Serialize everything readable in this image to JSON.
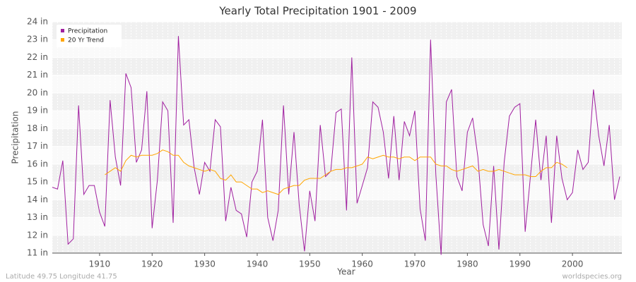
{
  "chart_data": {
    "type": "line",
    "title": "Yearly Total Precipitation 1901 - 2009",
    "x_label": "Year",
    "y_label": "Precipitation",
    "footer_left": "Latitude 49.75 Longitude 41.75",
    "footer_right": "worldspecies.org",
    "legend_position": "upper left",
    "grid": true,
    "x": [
      1901,
      1902,
      1903,
      1904,
      1905,
      1906,
      1907,
      1908,
      1909,
      1910,
      1911,
      1912,
      1913,
      1914,
      1915,
      1916,
      1917,
      1918,
      1919,
      1920,
      1921,
      1922,
      1923,
      1924,
      1925,
      1926,
      1927,
      1928,
      1929,
      1930,
      1931,
      1932,
      1933,
      1934,
      1935,
      1936,
      1937,
      1938,
      1939,
      1940,
      1941,
      1942,
      1943,
      1944,
      1945,
      1946,
      1947,
      1948,
      1949,
      1950,
      1951,
      1952,
      1953,
      1954,
      1955,
      1956,
      1957,
      1958,
      1959,
      1960,
      1961,
      1962,
      1963,
      1964,
      1965,
      1966,
      1967,
      1968,
      1969,
      1970,
      1971,
      1972,
      1973,
      1974,
      1975,
      1976,
      1977,
      1978,
      1979,
      1980,
      1981,
      1982,
      1983,
      1984,
      1985,
      1986,
      1987,
      1988,
      1989,
      1990,
      1991,
      1992,
      1993,
      1994,
      1995,
      1996,
      1997,
      1998,
      1999,
      2000,
      2001,
      2002,
      2003,
      2004,
      2005,
      2006,
      2007,
      2008,
      2009
    ],
    "series": [
      {
        "name": "Precipitation",
        "color": "#a020a0",
        "values": [
          14.7,
          14.6,
          16.2,
          11.5,
          11.8,
          19.3,
          14.3,
          14.8,
          14.8,
          13.3,
          12.5,
          19.6,
          16.4,
          14.8,
          21.1,
          20.3,
          16.1,
          16.8,
          20.1,
          12.4,
          15.1,
          19.5,
          19.0,
          12.7,
          23.2,
          18.2,
          18.5,
          15.8,
          14.3,
          16.1,
          15.6,
          18.5,
          18.1,
          12.8,
          14.7,
          13.4,
          13.2,
          11.9,
          15.0,
          15.6,
          18.5,
          13.0,
          11.7,
          13.4,
          19.3,
          14.3,
          17.8,
          13.7,
          11.1,
          14.5,
          12.8,
          18.2,
          15.3,
          15.6,
          18.9,
          19.1,
          13.4,
          22.0,
          13.8,
          14.8,
          15.8,
          19.5,
          19.2,
          17.8,
          15.2,
          18.7,
          15.1,
          18.4,
          17.6,
          19.0,
          13.5,
          11.7,
          23.0,
          15.4,
          10.9,
          19.5,
          20.2,
          15.3,
          14.5,
          17.8,
          18.6,
          16.4,
          12.6,
          11.4,
          15.9,
          11.2,
          16.1,
          18.7,
          19.2,
          19.4,
          12.2,
          15.3,
          18.5,
          15.1,
          17.6,
          12.7,
          17.6,
          15.2,
          14.0,
          14.4,
          16.8,
          15.7,
          16.1,
          20.2,
          17.6,
          15.9,
          18.2,
          14.0,
          15.3
        ]
      },
      {
        "name": "20 Yr Trend",
        "color": "#ffa500",
        "values": [
          null,
          null,
          null,
          null,
          null,
          null,
          null,
          null,
          null,
          null,
          15.4,
          15.6,
          15.8,
          15.6,
          16.2,
          16.5,
          16.4,
          16.5,
          16.5,
          16.5,
          16.6,
          16.8,
          16.7,
          16.5,
          16.5,
          16.1,
          15.9,
          15.8,
          15.7,
          15.6,
          15.7,
          15.6,
          15.2,
          15.1,
          15.4,
          15.0,
          15.0,
          14.8,
          14.6,
          14.6,
          14.4,
          14.5,
          14.4,
          14.3,
          14.6,
          14.7,
          14.8,
          14.8,
          15.1,
          15.2,
          15.2,
          15.2,
          15.4,
          15.6,
          15.7,
          15.7,
          15.8,
          15.8,
          15.9,
          16.0,
          16.4,
          16.3,
          16.4,
          16.5,
          16.4,
          16.4,
          16.3,
          16.4,
          16.4,
          16.2,
          16.4,
          16.4,
          16.4,
          16.0,
          15.9,
          15.9,
          15.7,
          15.6,
          15.7,
          15.8,
          15.9,
          15.6,
          15.7,
          15.6,
          15.6,
          15.7,
          15.6,
          15.5,
          15.4,
          15.4,
          15.4,
          15.3,
          15.3,
          15.6,
          15.8,
          15.8,
          16.1,
          16.0,
          15.8,
          null,
          null,
          null,
          null,
          null,
          null,
          null,
          null,
          null,
          null
        ]
      }
    ],
    "xlim": [
      1901,
      2009
    ],
    "xticks": [
      1910,
      1920,
      1930,
      1940,
      1950,
      1960,
      1970,
      1980,
      1990,
      2000
    ],
    "ylim": [
      11,
      24
    ],
    "yticks": [
      {
        "value": 11,
        "label": "11 in"
      },
      {
        "value": 12,
        "label": "12 in"
      },
      {
        "value": 13,
        "label": "13 in"
      },
      {
        "value": 14,
        "label": "14 in"
      },
      {
        "value": 15,
        "label": "15 in"
      },
      {
        "value": 16,
        "label": "16 in"
      },
      {
        "value": 17,
        "label": "17 in"
      },
      {
        "value": 18,
        "label": "18 in"
      },
      {
        "value": 19,
        "label": "19 in"
      },
      {
        "value": 20,
        "label": "20 in"
      },
      {
        "value": 21,
        "label": "21 in"
      },
      {
        "value": 22,
        "label": "22 in"
      },
      {
        "value": 23,
        "label": "23 in"
      },
      {
        "value": 24,
        "label": "24 in"
      }
    ]
  }
}
